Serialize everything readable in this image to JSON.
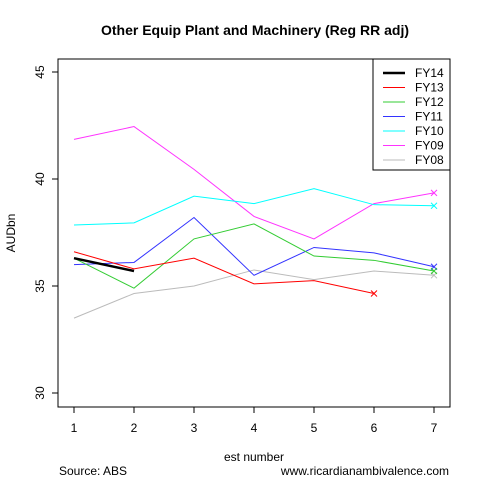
{
  "chart_data": {
    "type": "line",
    "title": "Other Equip Plant and Machinery (Reg RR adj)",
    "xlabel": "est number",
    "ylabel": "AUDbn",
    "x": [
      1,
      2,
      3,
      4,
      5,
      6,
      7
    ],
    "xlim": [
      1,
      7
    ],
    "ylim": [
      30,
      45
    ],
    "yticks": [
      30,
      35,
      40,
      45
    ],
    "grid": false,
    "legend_position": "top-right",
    "series": [
      {
        "name": "FY14",
        "color": "#000000",
        "values": [
          36.3,
          35.7,
          null,
          null,
          null,
          null,
          null
        ]
      },
      {
        "name": "FY13",
        "color": "#ff0000",
        "values": [
          36.6,
          35.8,
          36.3,
          35.1,
          35.25,
          34.65,
          null
        ]
      },
      {
        "name": "FY12",
        "color": "#33cc33",
        "values": [
          36.3,
          34.9,
          37.2,
          37.9,
          36.4,
          36.2,
          35.7
        ]
      },
      {
        "name": "FY11",
        "color": "#3333ff",
        "values": [
          36.0,
          36.1,
          38.2,
          35.5,
          36.8,
          36.55,
          35.9
        ]
      },
      {
        "name": "FY10",
        "color": "#00ffff",
        "values": [
          37.85,
          37.95,
          39.2,
          38.85,
          39.55,
          38.8,
          38.75
        ]
      },
      {
        "name": "FY09",
        "color": "#ff33ff",
        "values": [
          41.85,
          42.45,
          40.45,
          38.25,
          37.2,
          38.85,
          39.35
        ]
      },
      {
        "name": "FY08",
        "color": "#bbbbbb",
        "values": [
          33.5,
          34.65,
          35.0,
          35.75,
          35.3,
          35.7,
          35.5
        ]
      }
    ],
    "end_markers": [
      "FY13",
      "FY12",
      "FY11",
      "FY10",
      "FY09",
      "FY08"
    ],
    "marker": "x"
  },
  "footer": {
    "source": "Source: ABS",
    "website": "www.ricardianambivalence.com"
  }
}
